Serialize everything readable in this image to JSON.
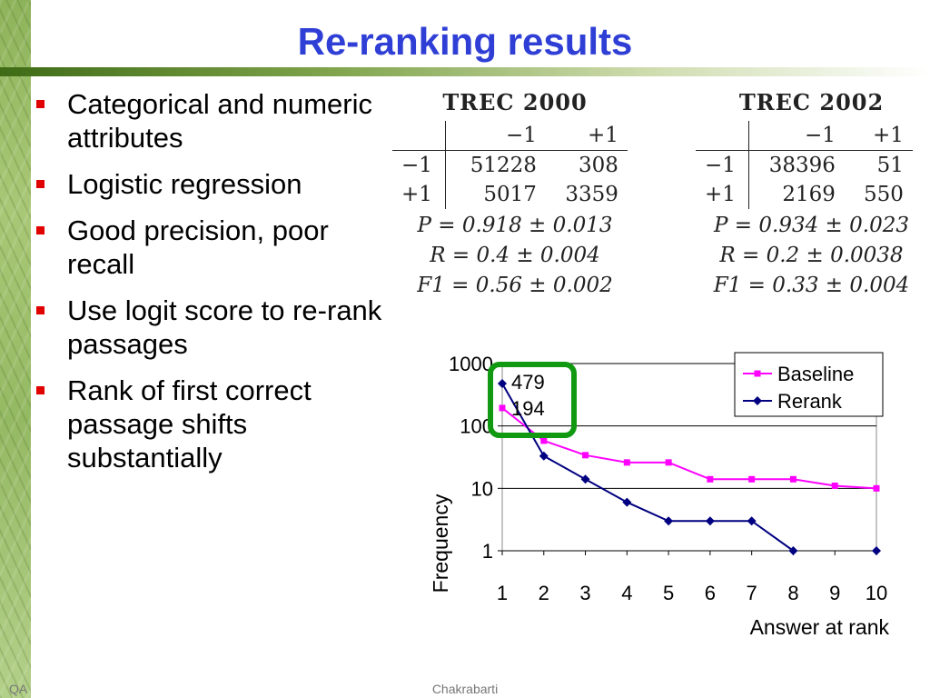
{
  "slide": {
    "title": "Re-ranking results",
    "footer_left": "QA",
    "footer_center": "Chakrabarti"
  },
  "bullets": [
    "Categorical and numeric attributes",
    "Logistic regression",
    "Good precision, poor recall",
    "Use logit score to re-rank passages",
    "Rank of first correct passage shifts substantially"
  ],
  "tables": [
    {
      "title": "TREC 2000",
      "col_headers": [
        "−1",
        "+1"
      ],
      "rows": [
        {
          "label": "−1",
          "cells": [
            "51228",
            "308"
          ]
        },
        {
          "label": "+1",
          "cells": [
            "5017",
            "3359"
          ]
        }
      ],
      "metrics": [
        "P = 0.918 ± 0.013",
        "R = 0.4 ± 0.004",
        "F1 = 0.56 ± 0.002"
      ]
    },
    {
      "title": "TREC 2002",
      "col_headers": [
        "−1",
        "+1"
      ],
      "rows": [
        {
          "label": "−1",
          "cells": [
            "38396",
            "51"
          ]
        },
        {
          "label": "+1",
          "cells": [
            "2169",
            "550"
          ]
        }
      ],
      "metrics": [
        "P = 0.934 ± 0.023",
        "R = 0.2 ± 0.0038",
        "F1 = 0.33 ± 0.004"
      ]
    }
  ],
  "chart_data": {
    "type": "line",
    "x": [
      1,
      2,
      3,
      4,
      5,
      6,
      7,
      8,
      9,
      10
    ],
    "xlabel": "Answer at rank",
    "ylabel": "Frequency",
    "yscale": "log",
    "ylim": [
      1,
      1000
    ],
    "yticks": [
      "1",
      "10",
      "100",
      "1000"
    ],
    "xticks": [
      "1",
      "2",
      "3",
      "4",
      "5",
      "6",
      "7",
      "8",
      "9",
      "10"
    ],
    "grid": true,
    "legend": "top-right",
    "series": [
      {
        "name": "Baseline",
        "color": "#ff00ff",
        "marker": "square",
        "values": [
          194,
          58,
          34,
          26,
          26,
          14,
          14,
          14,
          11,
          10
        ]
      },
      {
        "name": "Rerank",
        "color": "#000080",
        "marker": "diamond",
        "values": [
          479,
          33,
          14,
          6,
          3,
          3,
          3,
          1,
          null,
          1
        ]
      }
    ],
    "annotations": [
      "479",
      "194"
    ],
    "highlight_color": "#119911"
  }
}
